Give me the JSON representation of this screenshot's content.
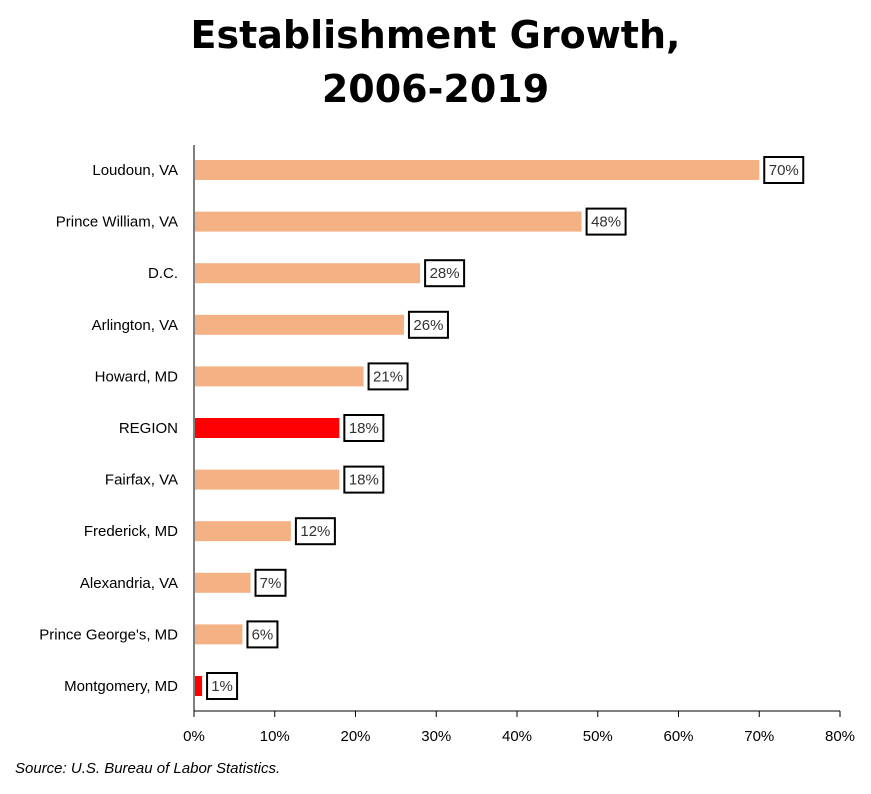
{
  "chart_data": {
    "type": "bar",
    "orientation": "horizontal",
    "title": [
      "Establishment Growth,",
      "2006-2019"
    ],
    "categories": [
      "Loudoun, VA",
      "Prince William, VA",
      "D.C.",
      "Arlington, VA",
      "Howard, MD",
      "REGION",
      "Fairfax, VA",
      "Frederick, MD",
      "Alexandria, VA",
      "Prince George's, MD",
      "Montgomery, MD"
    ],
    "values": [
      70,
      48,
      28,
      26,
      21,
      18,
      18,
      12,
      7,
      6,
      1
    ],
    "data_labels": [
      "70%",
      "48%",
      "28%",
      "26%",
      "21%",
      "18%",
      "18%",
      "12%",
      "7%",
      "6%",
      "1%"
    ],
    "bar_colors": [
      "#F4B183",
      "#F4B183",
      "#F4B183",
      "#F4B183",
      "#F4B183",
      "#FF0000",
      "#F4B183",
      "#F4B183",
      "#F4B183",
      "#F4B183",
      "#FF0000"
    ],
    "xlim": [
      0,
      80
    ],
    "x_ticks": [
      "0%",
      "10%",
      "20%",
      "30%",
      "40%",
      "50%",
      "60%",
      "70%",
      "80%"
    ],
    "xlabel": "",
    "ylabel": "",
    "grid": false,
    "legend": false
  },
  "source": "Source: U.S. Bureau of Labor Statistics."
}
